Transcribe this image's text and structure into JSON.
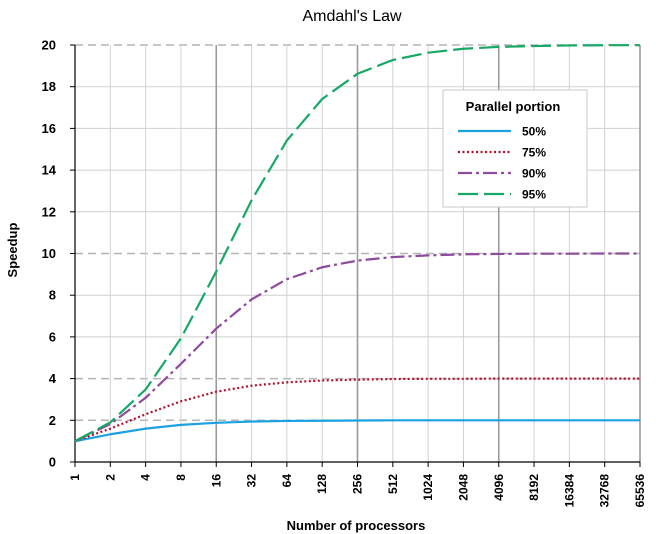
{
  "chart_data": {
    "type": "line",
    "title": "Amdahl's Law",
    "xlabel": "Number of processors",
    "ylabel": "Speedup",
    "x_scale": "log2",
    "categories": [
      "1",
      "2",
      "4",
      "8",
      "16",
      "32",
      "64",
      "128",
      "256",
      "512",
      "1024",
      "2048",
      "4096",
      "8192",
      "16384",
      "32768",
      "65536"
    ],
    "x": [
      1,
      2,
      4,
      8,
      16,
      32,
      64,
      128,
      256,
      512,
      1024,
      2048,
      4096,
      8192,
      16384,
      32768,
      65536
    ],
    "ylim": [
      0,
      20
    ],
    "yticks": [
      0,
      2,
      4,
      6,
      8,
      10,
      12,
      14,
      16,
      18,
      20
    ],
    "ytick_labels": [
      "0",
      "2",
      "4",
      "6",
      "8",
      "10",
      "12",
      "14",
      "16",
      "18",
      "20"
    ],
    "grid": true,
    "legend": {
      "title": "Parallel portion",
      "position": "top-right"
    },
    "series": [
      {
        "name": "50%",
        "color": "#1BA1E2",
        "dash": "solid",
        "values": [
          1.0,
          1.33,
          1.6,
          1.78,
          1.88,
          1.94,
          1.97,
          1.98,
          1.99,
          2.0,
          2.0,
          2.0,
          2.0,
          2.0,
          2.0,
          2.0,
          2.0
        ]
      },
      {
        "name": "75%",
        "color": "#B0102E",
        "dash": "dotted",
        "values": [
          1.0,
          1.6,
          2.29,
          2.91,
          3.37,
          3.66,
          3.82,
          3.91,
          3.95,
          3.98,
          3.99,
          3.99,
          4.0,
          4.0,
          4.0,
          4.0,
          4.0
        ]
      },
      {
        "name": "90%",
        "color": "#8E4A9E",
        "dash": "dashdot",
        "values": [
          1.0,
          1.82,
          3.08,
          4.71,
          6.4,
          7.8,
          8.77,
          9.34,
          9.66,
          9.83,
          9.91,
          9.96,
          9.98,
          9.99,
          9.99,
          10.0,
          10.0
        ]
      },
      {
        "name": "95%",
        "color": "#18A866",
        "dash": "dashed",
        "values": [
          1.0,
          1.9,
          3.48,
          5.93,
          9.14,
          12.55,
          15.42,
          17.41,
          18.62,
          19.28,
          19.63,
          19.82,
          19.91,
          19.95,
          19.98,
          19.99,
          19.99
        ]
      }
    ]
  }
}
